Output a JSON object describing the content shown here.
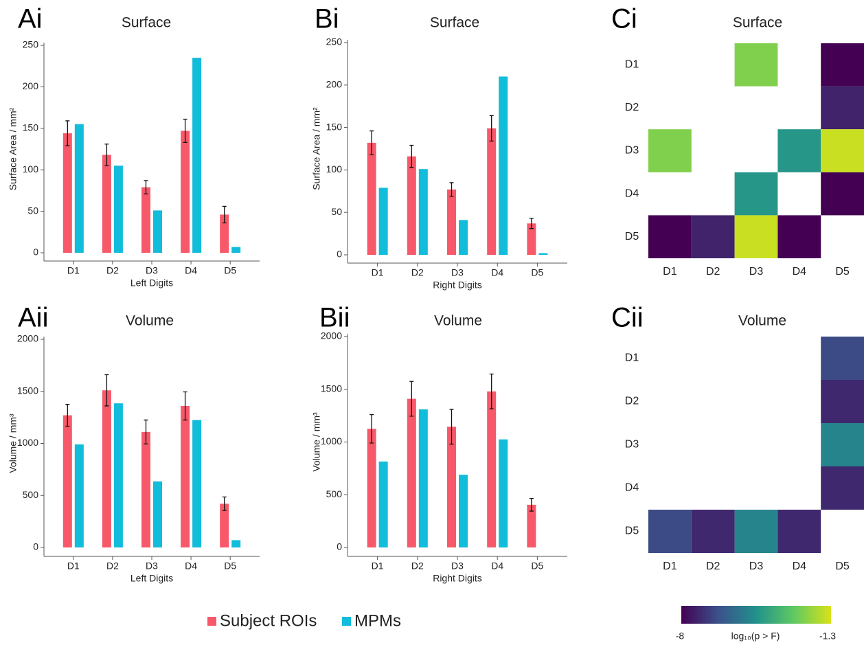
{
  "chart_data": [
    {
      "type": "bar",
      "panel": "Ai",
      "title": "Surface",
      "ylabel": "Surface Area / mm²",
      "xlabel": "Left Digits",
      "categories": [
        "D1",
        "D2",
        "D3",
        "D4",
        "D5"
      ],
      "ylim": [
        0,
        250
      ],
      "yticks": [
        0,
        50,
        100,
        150,
        200,
        250
      ],
      "series": [
        {
          "name": "Subject ROIs",
          "color": "#f7596a",
          "values": [
            144,
            118,
            79,
            147,
            46
          ],
          "errors": [
            15,
            13,
            8,
            14,
            10
          ]
        },
        {
          "name": "MPMs",
          "color": "#12bcdb",
          "values": [
            155,
            105,
            51,
            235,
            7
          ]
        }
      ]
    },
    {
      "type": "bar",
      "panel": "Bi",
      "title": "Surface",
      "ylabel": "Surface Area / mm²",
      "xlabel": "Right Digits",
      "categories": [
        "D1",
        "D2",
        "D3",
        "D4",
        "D5"
      ],
      "ylim": [
        0,
        250
      ],
      "yticks": [
        0,
        50,
        100,
        150,
        200,
        250
      ],
      "series": [
        {
          "name": "Subject ROIs",
          "color": "#f7596a",
          "values": [
            132,
            116,
            77,
            149,
            37
          ],
          "errors": [
            14,
            13,
            8,
            15,
            6
          ]
        },
        {
          "name": "MPMs",
          "color": "#12bcdb",
          "values": [
            79,
            101,
            41,
            210,
            2
          ]
        }
      ]
    },
    {
      "type": "heatmap",
      "panel": "Ci",
      "title": "Surface",
      "x": [
        "D1",
        "D2",
        "D3",
        "D4",
        "D5"
      ],
      "y": [
        "D1",
        "D2",
        "D3",
        "D4",
        "D5"
      ],
      "values": [
        [
          null,
          null,
          -2.5,
          null,
          -8
        ],
        [
          null,
          null,
          null,
          null,
          -7.3
        ],
        [
          -2.5,
          null,
          null,
          -4.5,
          -1.5
        ],
        [
          null,
          null,
          -4.5,
          null,
          -8
        ],
        [
          -8,
          -7.3,
          -1.5,
          -8,
          null
        ]
      ]
    },
    {
      "type": "bar",
      "panel": "Aii",
      "title": "Volume",
      "ylabel": "Volume / mm³",
      "xlabel": "Left Digits",
      "categories": [
        "D1",
        "D2",
        "D3",
        "D4",
        "D5"
      ],
      "ylim": [
        0,
        2000
      ],
      "yticks": [
        0,
        500,
        1000,
        1500,
        2000
      ],
      "series": [
        {
          "name": "Subject ROIs",
          "color": "#f7596a",
          "values": [
            1270,
            1510,
            1110,
            1360,
            420
          ],
          "errors": [
            105,
            150,
            115,
            135,
            65
          ]
        },
        {
          "name": "MPMs",
          "color": "#12bcdb",
          "values": [
            990,
            1385,
            635,
            1225,
            70
          ]
        }
      ]
    },
    {
      "type": "bar",
      "panel": "Bii",
      "title": "Volume",
      "ylabel": "Volume / mm³",
      "xlabel": "Right Digits",
      "categories": [
        "D1",
        "D2",
        "D3",
        "D4",
        "D5"
      ],
      "ylim": [
        0,
        2000
      ],
      "yticks": [
        0,
        500,
        1000,
        1500,
        2000
      ],
      "series": [
        {
          "name": "Subject ROIs",
          "color": "#f7596a",
          "values": [
            1125,
            1410,
            1145,
            1480,
            405
          ],
          "errors": [
            135,
            165,
            165,
            165,
            60
          ]
        },
        {
          "name": "MPMs",
          "color": "#12bcdb",
          "values": [
            815,
            1310,
            690,
            1025,
            0
          ]
        }
      ]
    },
    {
      "type": "heatmap",
      "panel": "Cii",
      "title": "Volume",
      "x": [
        "D1",
        "D2",
        "D3",
        "D4",
        "D5"
      ],
      "y": [
        "D1",
        "D2",
        "D3",
        "D4",
        "D5"
      ],
      "values": [
        [
          null,
          null,
          null,
          null,
          -6.5
        ],
        [
          null,
          null,
          null,
          null,
          -7.2
        ],
        [
          null,
          null,
          null,
          null,
          -5
        ],
        [
          null,
          null,
          null,
          null,
          -7.2
        ],
        [
          -6.5,
          -7.2,
          -5,
          -7.2,
          null
        ]
      ]
    }
  ],
  "colorbar": {
    "zlim": [
      -8,
      -1.3
    ],
    "ticks": [
      -8,
      -1.3
    ],
    "label": "log₁₀(p > F)"
  }
}
